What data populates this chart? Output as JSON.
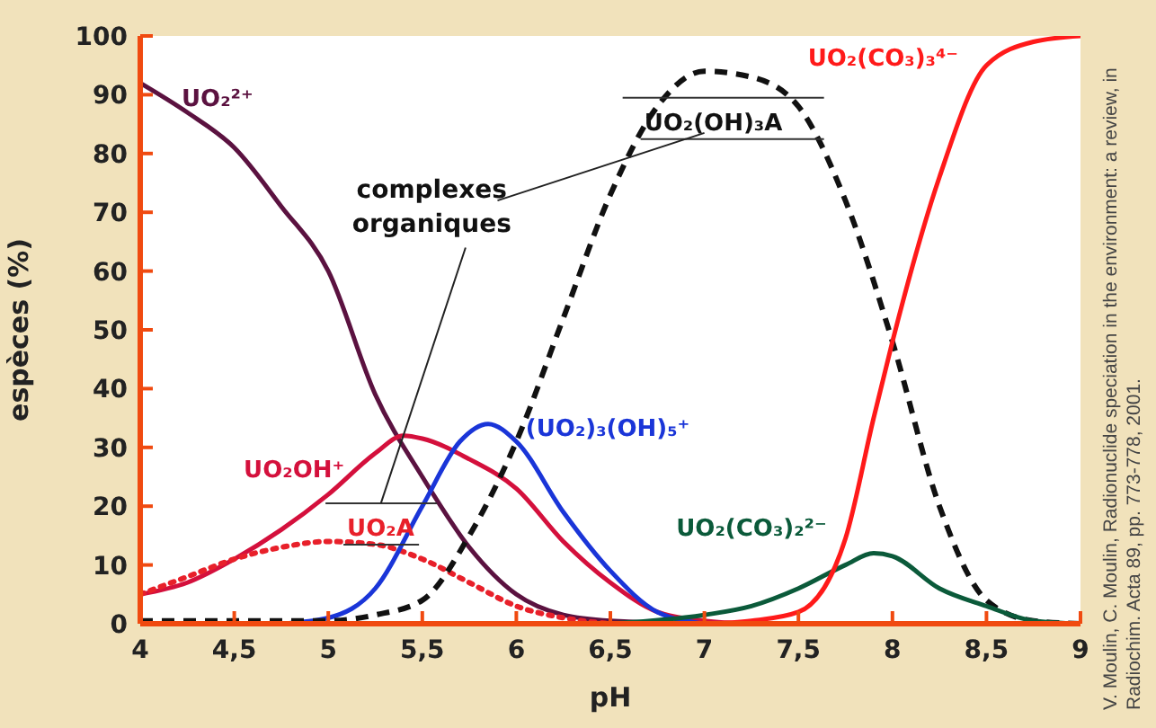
{
  "chart_data": {
    "type": "line",
    "xlabel": "pH",
    "ylabel": "espèces (%)",
    "xlim": [
      4,
      9
    ],
    "ylim": [
      0,
      100
    ],
    "xticks": [
      4,
      {
        "value": 4.5,
        "label": "4,5"
      },
      5,
      {
        "value": 5.5,
        "label": "5,5"
      },
      6,
      {
        "value": 6.5,
        "label": "6,5"
      },
      7,
      {
        "value": 7.5,
        "label": "7,5"
      },
      8,
      {
        "value": 8.5,
        "label": "8,5"
      },
      9
    ],
    "yticks": [
      0,
      10,
      20,
      30,
      40,
      50,
      60,
      70,
      80,
      90,
      100
    ],
    "marker": "none",
    "series": [
      {
        "name": "UO₂²⁺",
        "color": "#5b1240",
        "line_style": "solid",
        "x": [
          4,
          4.25,
          4.5,
          4.75,
          5,
          5.25,
          5.5,
          5.75,
          6,
          6.25,
          6.5,
          7,
          9
        ],
        "values": [
          92,
          87,
          81,
          71,
          60,
          39,
          25,
          13,
          5,
          1.5,
          0.5,
          0,
          0
        ]
      },
      {
        "name": "UO₂OH⁺",
        "color": "#d4103c",
        "line_style": "solid",
        "x": [
          4,
          4.25,
          4.5,
          4.75,
          5,
          5.25,
          5.4,
          5.5,
          5.75,
          6,
          6.25,
          6.5,
          6.75,
          7,
          7.25
        ],
        "values": [
          5,
          7,
          11,
          16,
          22,
          29,
          32,
          31.5,
          28,
          23,
          14,
          7,
          2,
          0.5,
          0
        ]
      },
      {
        "name": "UO₂A",
        "color": "#e8202a",
        "line_style": "dotted",
        "x": [
          4,
          4.25,
          4.5,
          4.75,
          5,
          5.25,
          5.5,
          5.75,
          6,
          6.25,
          6.5
        ],
        "values": [
          5,
          8,
          11,
          13,
          14,
          13.5,
          11,
          7,
          3,
          1,
          0
        ]
      },
      {
        "name": "(UO₂)₃(OH)₅⁺",
        "color": "#1a35d8",
        "line_style": "solid",
        "x": [
          4.75,
          5,
          5.25,
          5.5,
          5.7,
          5.85,
          6,
          6.25,
          6.5,
          6.75,
          7
        ],
        "values": [
          0,
          1,
          6,
          20,
          31,
          34,
          31,
          19,
          9,
          2,
          0
        ]
      },
      {
        "name": "UO₂(OH)₃A",
        "color": "#111111",
        "line_style": "dashed",
        "x": [
          4,
          5,
          5.25,
          5.5,
          5.75,
          6,
          6.25,
          6.5,
          6.75,
          7,
          7.25,
          7.5,
          7.75,
          8,
          8.25,
          8.5,
          8.75,
          9
        ],
        "values": [
          0.5,
          0.5,
          1.5,
          4,
          15,
          31,
          52,
          73,
          88,
          94,
          93,
          88,
          72,
          48,
          20,
          4,
          0.5,
          0
        ]
      },
      {
        "name": "UO₂(CO₃)₂²⁻",
        "color": "#0b5a3a",
        "line_style": "solid",
        "x": [
          6.5,
          7,
          7.25,
          7.5,
          7.75,
          7.9,
          8,
          8.25,
          8.5,
          8.75,
          9
        ],
        "values": [
          0,
          1.5,
          3,
          6,
          10,
          12,
          11.5,
          6,
          3,
          0.5,
          0
        ]
      },
      {
        "name": "UO₂(CO₃)₃⁴⁻",
        "color": "#ff1a1a",
        "line_style": "solid",
        "x": [
          7,
          7.25,
          7.5,
          7.75,
          7.9,
          8,
          8.25,
          8.5,
          8.75,
          9
        ],
        "values": [
          0,
          0.5,
          2,
          14.5,
          35,
          48,
          76,
          95,
          99,
          100
        ]
      }
    ],
    "annotations": [
      "complexes organiques",
      "V. Moulin, C. Moulin, Radionuclide speciation in the environment: a review, in Radiochim. Acta 89, pp. 773-778, 2001."
    ]
  }
}
